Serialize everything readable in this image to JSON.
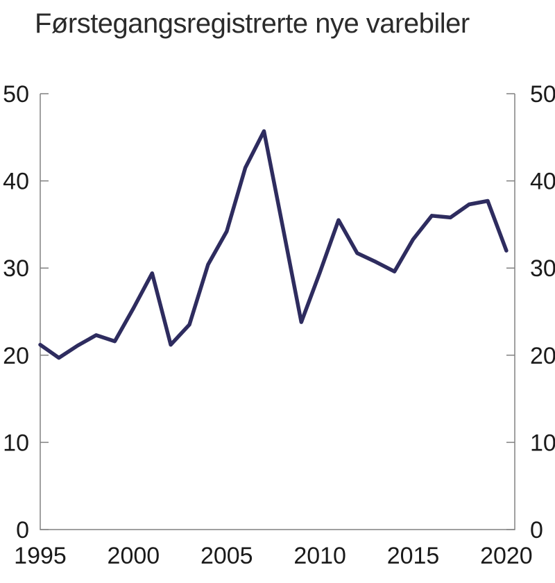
{
  "chart_data": {
    "type": "line",
    "title": "Førstegangsregistrerte nye varebiler",
    "xlabel": "",
    "ylabel": "",
    "x": [
      1995,
      1996,
      1997,
      1998,
      1999,
      2000,
      2001,
      2002,
      2003,
      2004,
      2005,
      2006,
      2007,
      2008,
      2009,
      2010,
      2011,
      2012,
      2013,
      2014,
      2015,
      2016,
      2017,
      2018,
      2019,
      2020
    ],
    "series": [
      {
        "name": "Førstegangsregistrerte nye varebiler",
        "values": [
          21.2,
          19.7,
          21.1,
          22.3,
          21.6,
          25.4,
          29.4,
          21.2,
          23.5,
          30.4,
          34.2,
          41.5,
          45.7,
          34.8,
          23.8,
          29.5,
          35.5,
          31.7,
          30.7,
          29.6,
          33.3,
          36.0,
          35.8,
          37.3,
          37.7,
          32.0
        ]
      }
    ],
    "x_ticks": [
      1995,
      2000,
      2005,
      2010,
      2015,
      2020
    ],
    "y_ticks": [
      0,
      10,
      20,
      30,
      40,
      50
    ],
    "xlim": [
      1995,
      2020.45
    ],
    "ylim": [
      0,
      50
    ],
    "grid": false,
    "legend": "none",
    "y_axis_sides": "both",
    "line_color": "#2e2c5f",
    "axis_color": "#808080",
    "label_color": "#1a1a1a"
  }
}
